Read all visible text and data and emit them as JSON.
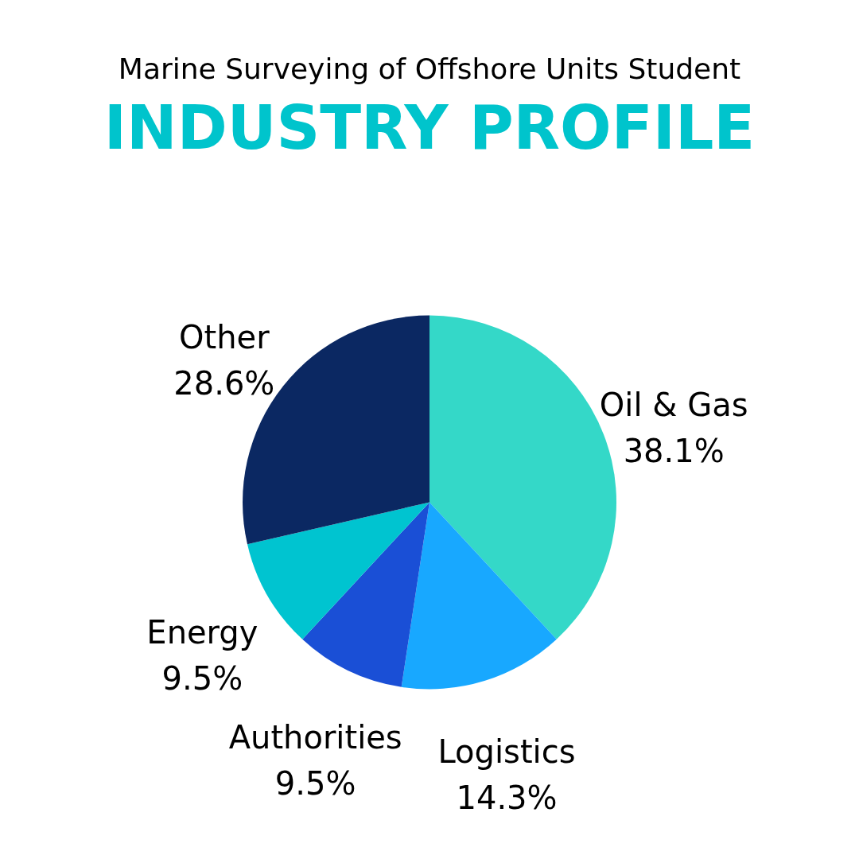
{
  "chart_data": {
    "type": "pie",
    "title": "INDUSTRY PROFILE",
    "subtitle": "Marine Surveying of Offshore Units Student",
    "categories": [
      "Oil & Gas",
      "Logistics",
      "Authorities",
      "Energy",
      "Other"
    ],
    "values": [
      38.1,
      14.3,
      9.5,
      9.5,
      28.6
    ],
    "value_labels": [
      "38.1%",
      "14.3%",
      "9.5%",
      "9.5%",
      "28.6%"
    ],
    "colors": [
      "#34d8c8",
      "#18a8ff",
      "#1a4fd6",
      "#00c4d0",
      "#0b2862"
    ],
    "legend": false
  }
}
